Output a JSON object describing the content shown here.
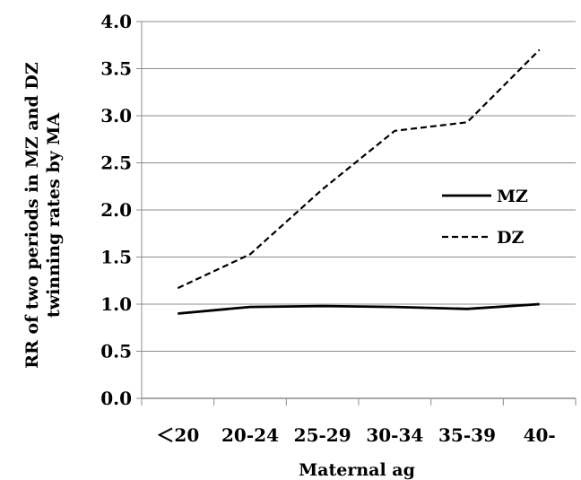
{
  "chart_data": {
    "type": "line",
    "categories": [
      "＜20",
      "20-24",
      "25-29",
      "30-34",
      "35-39",
      "40-"
    ],
    "series": [
      {
        "name": "MZ",
        "values": [
          0.9,
          0.97,
          0.98,
          0.97,
          0.95,
          1.0
        ],
        "style": "solid",
        "color": "#000000"
      },
      {
        "name": "DZ",
        "values": [
          1.17,
          1.53,
          2.22,
          2.84,
          2.93,
          3.7
        ],
        "style": "dashed",
        "color": "#000000"
      }
    ],
    "ylabel_lines": [
      "RR of two periods in MZ and DZ",
      "twinning rates by MA"
    ],
    "xlabel": "Maternal ag",
    "ylim": [
      0,
      4.0
    ],
    "yticks": [
      "0.0",
      "0.5",
      "1.0",
      "1.5",
      "2.0",
      "2.5",
      "3.0",
      "3.5",
      "4.0"
    ],
    "grid": true,
    "legend_position": "right"
  }
}
